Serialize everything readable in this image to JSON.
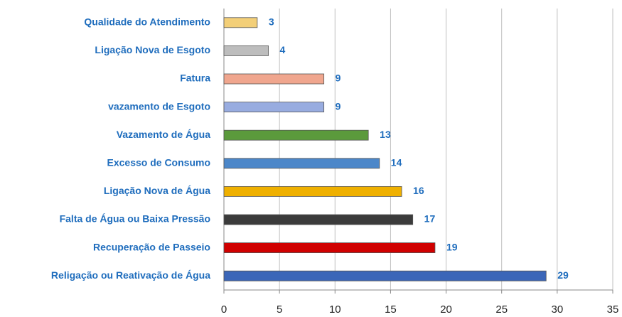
{
  "chart_data": {
    "type": "bar",
    "orientation": "horizontal",
    "categories": [
      "Qualidade do Atendimento",
      "Ligação Nova de Esgoto",
      "Fatura",
      "vazamento de Esgoto",
      "Vazamento de Água",
      "Excesso de Consumo",
      "Ligação Nova de Água",
      "Falta de Água ou Baixa Pressão",
      "Recuperação de Passeio",
      "Religação ou Reativação de Água"
    ],
    "values": [
      3,
      4,
      9,
      9,
      13,
      14,
      16,
      17,
      19,
      29
    ],
    "colors": [
      "#f3cf78",
      "#bdbdbd",
      "#f0a68e",
      "#98ace0",
      "#5b9a3c",
      "#4c87c9",
      "#efb000",
      "#3b3b3b",
      "#d00000",
      "#3b66b8"
    ],
    "xlim": [
      0,
      35
    ],
    "xticks": [
      0,
      5,
      10,
      15,
      20,
      25,
      30,
      35
    ],
    "grid": true
  }
}
